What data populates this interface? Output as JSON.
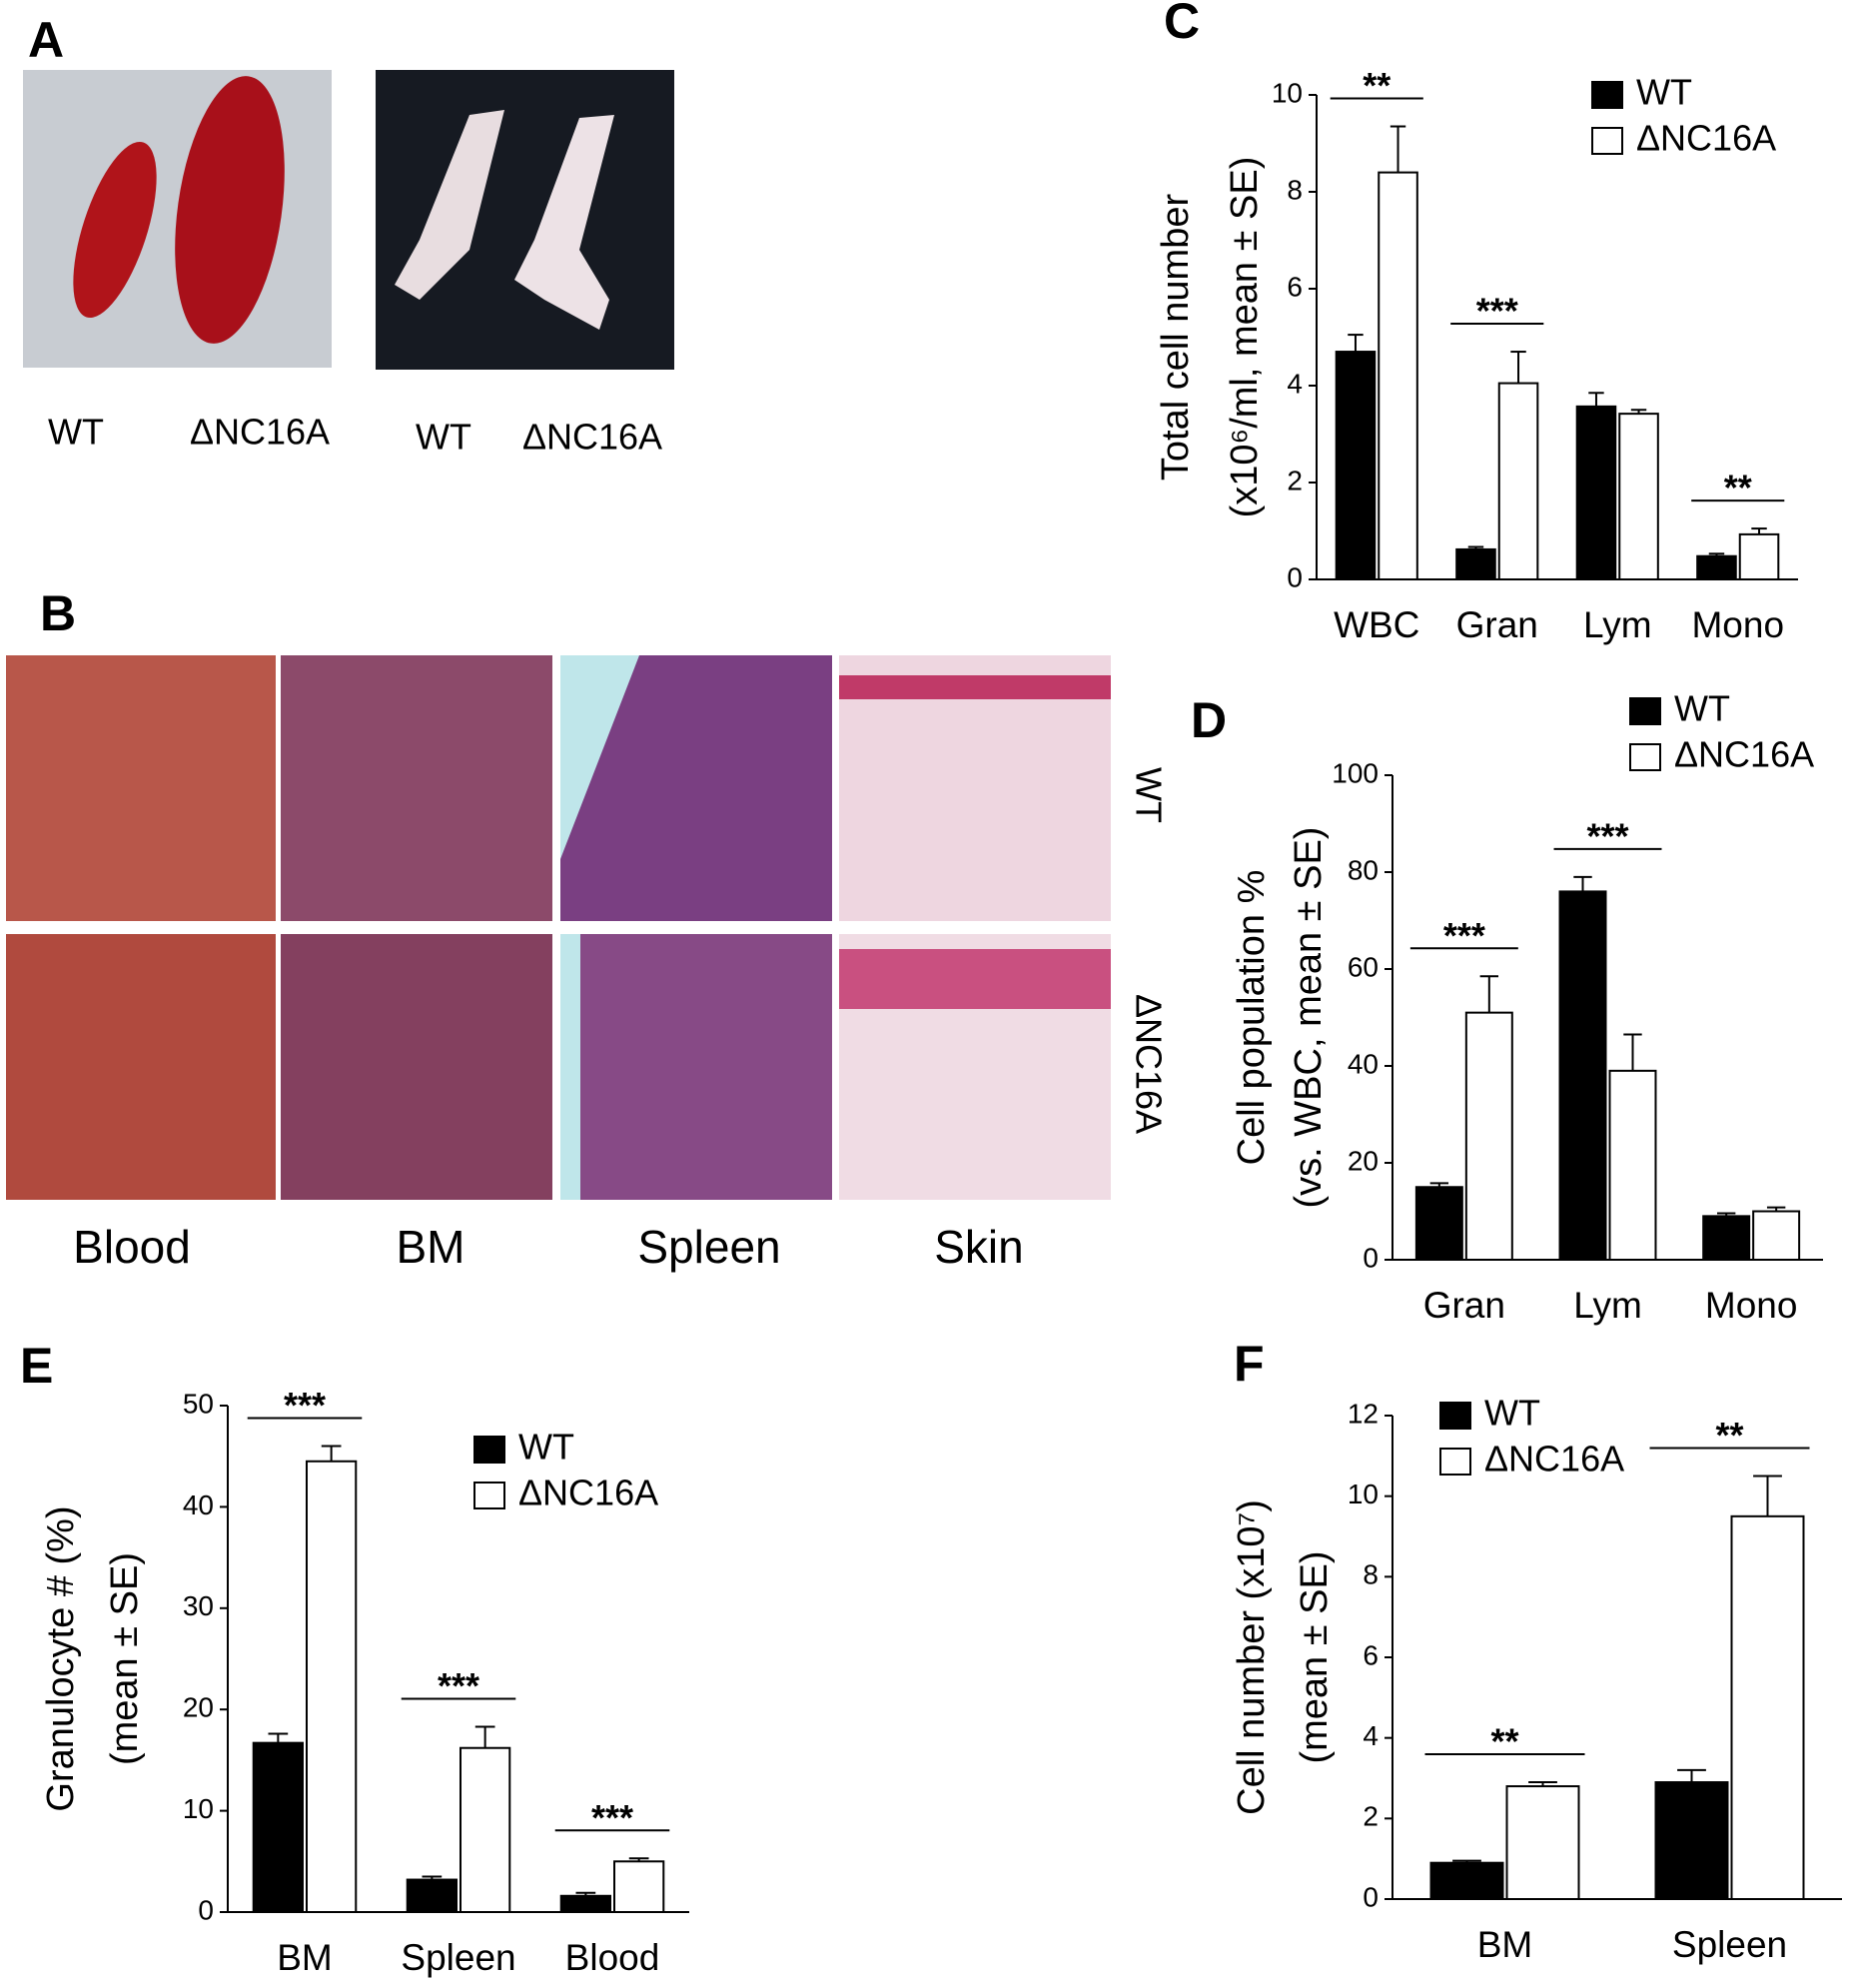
{
  "photo_panels": {
    "A": {
      "label": "A",
      "captions": [
        "WT",
        "ΔNC16A",
        "WT",
        "ΔNC16A"
      ]
    },
    "B": {
      "label": "B",
      "columns": [
        "Blood",
        "BM",
        "Spleen",
        "Skin"
      ],
      "rows": [
        "WT",
        "ΔNC16A"
      ]
    }
  },
  "chart_data": [
    {
      "label": "C",
      "type": "bar",
      "ylabel": [
        "Total cell number",
        "(x10⁶/ml, mean ± SE)"
      ],
      "categories": [
        "WBC",
        "Gran",
        "Lym",
        "Mono"
      ],
      "series": [
        {
          "name": "WT",
          "color": "#000000",
          "values": [
            4.7,
            0.62,
            3.57,
            0.48
          ],
          "errors": [
            0.35,
            0.05,
            0.28,
            0.05
          ]
        },
        {
          "name": "ΔNC16A",
          "color": "#ffffff",
          "values": [
            8.4,
            4.05,
            3.42,
            0.93
          ],
          "errors": [
            0.95,
            0.65,
            0.08,
            0.12
          ]
        }
      ],
      "ylim": [
        0,
        10
      ],
      "yticks": [
        0,
        2,
        4,
        6,
        8,
        10
      ],
      "legend": "upper right",
      "annotations": [
        {
          "text": "**",
          "category": "WBC"
        },
        {
          "text": "***",
          "category": "Gran"
        },
        {
          "text": "**",
          "category": "Mono"
        }
      ]
    },
    {
      "label": "D",
      "type": "bar",
      "ylabel": [
        "Cell population %",
        "(vs. WBC, mean ± SE)"
      ],
      "categories": [
        "Gran",
        "Lym",
        "Mono"
      ],
      "series": [
        {
          "name": "WT",
          "color": "#000000",
          "values": [
            15,
            76,
            9
          ],
          "errors": [
            0.8,
            3,
            0.6
          ]
        },
        {
          "name": "ΔNC16A",
          "color": "#ffffff",
          "values": [
            51,
            39,
            10
          ],
          "errors": [
            7.5,
            7.5,
            0.8
          ]
        }
      ],
      "ylim": [
        0,
        100
      ],
      "yticks": [
        0,
        20,
        40,
        60,
        80,
        100
      ],
      "legend": "upper right",
      "annotations": [
        {
          "text": "***",
          "category": "Gran"
        },
        {
          "text": "***",
          "category": "Lym"
        }
      ]
    },
    {
      "label": "E",
      "type": "bar",
      "ylabel": [
        "Granulocyte # (%)",
        "(mean ± SE)"
      ],
      "categories": [
        "BM",
        "Spleen",
        "Blood"
      ],
      "series": [
        {
          "name": "WT",
          "color": "#000000",
          "values": [
            16.7,
            3.2,
            1.6
          ],
          "errors": [
            0.9,
            0.3,
            0.3
          ]
        },
        {
          "name": "ΔNC16A",
          "color": "#ffffff",
          "values": [
            44.5,
            16.2,
            5.0
          ],
          "errors": [
            1.5,
            2.1,
            0.3
          ]
        }
      ],
      "ylim": [
        0,
        50
      ],
      "yticks": [
        0,
        10,
        20,
        30,
        40,
        50
      ],
      "legend": "upper right",
      "annotations": [
        {
          "text": "***",
          "category": "BM"
        },
        {
          "text": "***",
          "category": "Spleen"
        },
        {
          "text": "***",
          "category": "Blood"
        }
      ]
    },
    {
      "label": "F",
      "type": "bar",
      "ylabel": [
        "Cell number (x10⁷)",
        "(mean ± SE)"
      ],
      "categories": [
        "BM",
        "Spleen"
      ],
      "series": [
        {
          "name": "WT",
          "color": "#000000",
          "values": [
            0.9,
            2.9
          ],
          "errors": [
            0.05,
            0.3
          ]
        },
        {
          "name": "ΔNC16A",
          "color": "#ffffff",
          "values": [
            2.8,
            9.5
          ],
          "errors": [
            0.1,
            1.0
          ]
        }
      ],
      "ylim": [
        0,
        12
      ],
      "yticks": [
        0,
        2,
        4,
        6,
        8,
        10,
        12
      ],
      "legend": "upper left",
      "annotations": [
        {
          "text": "**",
          "category": "BM"
        },
        {
          "text": "**",
          "category": "Spleen"
        }
      ]
    }
  ]
}
